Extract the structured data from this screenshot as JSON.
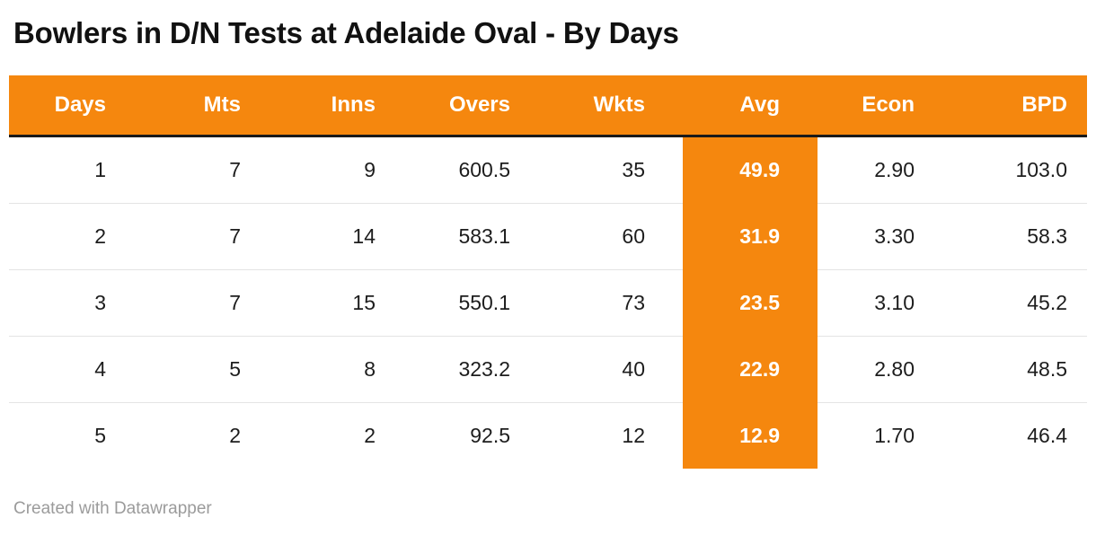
{
  "footer": "Created with Datawrapper",
  "colors": {
    "accent_orange": "#F5870E",
    "header_text": "#FFFFFF",
    "body_text": "#1D1D1D",
    "header_border": "#1A1A1A",
    "row_divider": "#E4E4E4",
    "footer_text": "#9B9B9B"
  },
  "chart_data": {
    "type": "table",
    "title": "Bowlers in D/N Tests at Adelaide Oval - By Days",
    "columns": [
      "Days",
      "Mts",
      "Inns",
      "Overs",
      "Wkts",
      "Avg",
      "Econ",
      "BPD"
    ],
    "highlight_column": "Avg",
    "rows": [
      [
        "1",
        "7",
        "9",
        "600.5",
        "35",
        "49.9",
        "2.90",
        "103.0"
      ],
      [
        "2",
        "7",
        "14",
        "583.1",
        "60",
        "31.9",
        "3.30",
        "58.3"
      ],
      [
        "3",
        "7",
        "15",
        "550.1",
        "73",
        "23.5",
        "3.10",
        "45.2"
      ],
      [
        "4",
        "5",
        "8",
        "323.2",
        "40",
        "22.9",
        "2.80",
        "48.5"
      ],
      [
        "5",
        "2",
        "2",
        "92.5",
        "12",
        "12.9",
        "1.70",
        "46.4"
      ]
    ]
  }
}
